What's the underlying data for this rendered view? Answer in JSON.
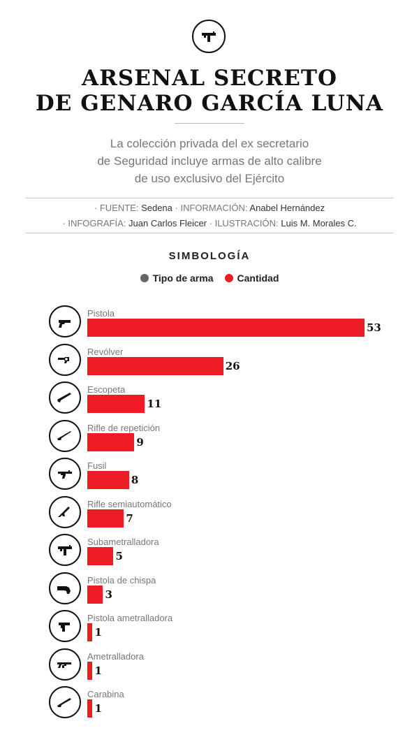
{
  "header": {
    "icon": "submachine-gun-icon",
    "title_line1": "ARSENAL SECRETO",
    "title_line2": "DE GENARO GARCÍA LUNA",
    "subtitle_line1": "La colección privada del ex secretario",
    "subtitle_line2": "de Seguridad incluye armas de alto calibre",
    "subtitle_line3": "de uso exclusivo del Ejército"
  },
  "credits": {
    "fuente_label": "· FUENTE:",
    "fuente_value": "Sedena",
    "informacion_label": "· INFORMACIÓN:",
    "informacion_value": "Anabel Hernández",
    "infografia_label": "· INFOGRAFÍA:",
    "infografia_value": "Juan Carlos Fleicer",
    "ilustracion_label": "· ILUSTRACIÓN:",
    "ilustracion_value": "Luis M. Morales C."
  },
  "legend": {
    "title": "SIMBOLOGÍA",
    "items": [
      {
        "label": "Tipo de arma",
        "color": "#666666"
      },
      {
        "label": "Cantidad",
        "color": "#ee1c25"
      }
    ]
  },
  "chart_data": {
    "type": "bar",
    "orientation": "horizontal",
    "bar_color": "#ee1c25",
    "categories": [
      "Pistola",
      "Revólver",
      "Escopeta",
      "Rifle de repetición",
      "Fusil",
      "Rifle semiautomático",
      "Subametralladora",
      "Pistola de chispa",
      "Pistola ametralladora",
      "Ametralladora",
      "Carabina"
    ],
    "values": [
      53,
      26,
      11,
      9,
      8,
      7,
      5,
      3,
      1,
      1,
      1
    ],
    "value_labels": [
      "53",
      "26",
      "11",
      "9",
      "8",
      "7",
      "5",
      "3",
      "1",
      "1",
      "1"
    ],
    "icons": [
      "pistol-icon",
      "revolver-icon",
      "shotgun-icon",
      "bolt-action-rifle-icon",
      "assault-rifle-icon",
      "semiautomatic-rifle-icon",
      "submachine-gun-icon",
      "flintlock-pistol-icon",
      "machine-pistol-icon",
      "machine-gun-icon",
      "carbine-icon"
    ]
  }
}
